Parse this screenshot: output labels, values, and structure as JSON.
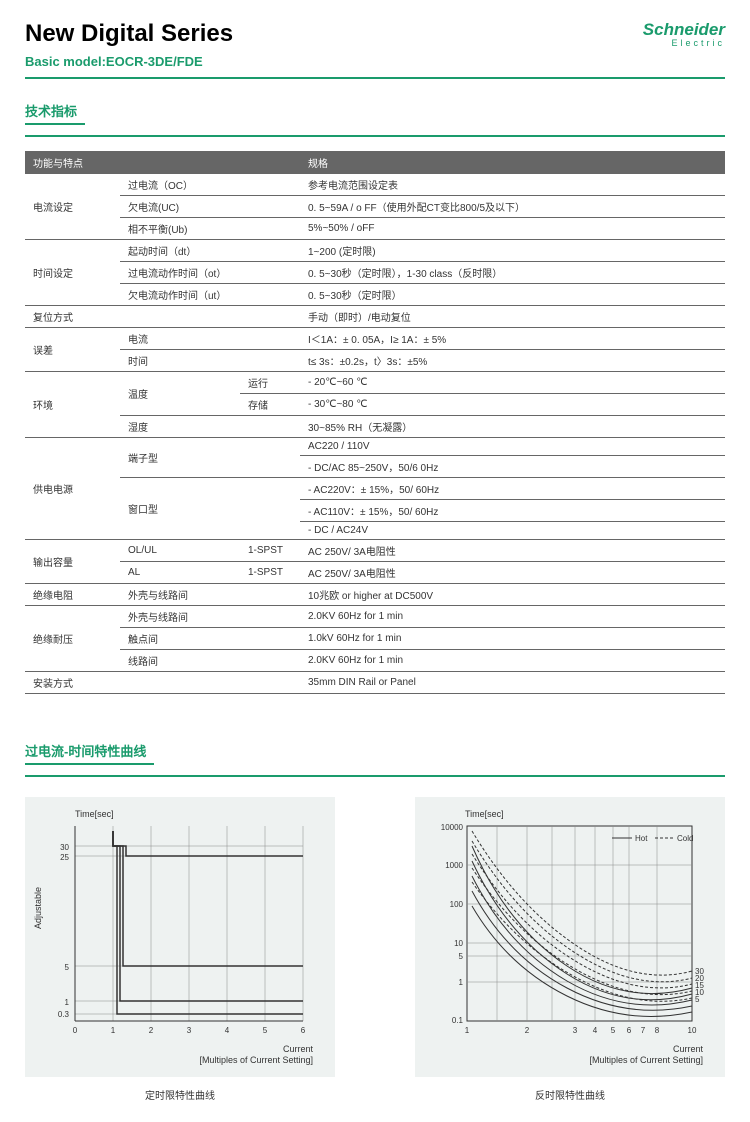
{
  "header": {
    "title": "New Digital Series",
    "subtitle": "Basic model:EOCR-3DE/FDE",
    "logo_name": "Schneider",
    "logo_sub": "Electric"
  },
  "section1_title": "技术指标",
  "section2_title": "过电流-时间特性曲线",
  "table": {
    "header_col1": "功能与特点",
    "header_col2": "规格",
    "rows": [
      {
        "g": "电流设定",
        "c2": "过电流（OC）",
        "c3": "",
        "v": "参考电流范围设定表",
        "span": 3
      },
      {
        "g": "",
        "c2": "欠电流(UC)",
        "c3": "",
        "v": "0. 5~59A / o FF（使用外配CT变比800/5及以下）"
      },
      {
        "g": "",
        "c2": "相不平衡(Ub)",
        "c3": "",
        "v": "5%~50% / oFF"
      },
      {
        "g": "时间设定",
        "c2": "起动时间（dt）",
        "c3": "",
        "v": "1~200 (定时限)",
        "span": 3
      },
      {
        "g": "",
        "c2": "过电流动作时间（ot）",
        "c3": "",
        "v": "0. 5~30秒（定时限），1-30 class（反时限）"
      },
      {
        "g": "",
        "c2": "欠电流动作时间（ut）",
        "c3": "",
        "v": "0. 5~30秒（定时限）"
      },
      {
        "g": "复位方式",
        "c2": "",
        "c3": "",
        "v": "手动（即时）/电动复位",
        "span": 1,
        "merge23": true
      },
      {
        "g": "误差",
        "c2": "电流",
        "c3": "",
        "v": "I＜1A：± 0. 05A，I≥ 1A：± 5%",
        "span": 2
      },
      {
        "g": "",
        "c2": "时间",
        "c3": "",
        "v": "t≤ 3s：±0.2s，t〉3s：±5%"
      },
      {
        "g": "环境",
        "c2": "温度",
        "c3": "运行",
        "v": "- 20℃~60 ℃",
        "span": 3,
        "c2span": 2
      },
      {
        "g": "",
        "c2": "",
        "c3": "存储",
        "v": "- 30℃~80 ℃"
      },
      {
        "g": "",
        "c2": "湿度",
        "c3": "",
        "v": "30~85% RH（无凝露）"
      },
      {
        "g": "供电电源",
        "c2": "端子型",
        "c3": "",
        "v": "AC220 / 110V",
        "span": 5,
        "c2span": 2
      },
      {
        "g": "",
        "c2": "",
        "c3": "",
        "v": "- DC/AC 85~250V，50/6 0Hz"
      },
      {
        "g": "",
        "c2": "窗口型",
        "c3": "",
        "v": "- AC220V：± 15%，50/ 60Hz",
        "c2span": 3
      },
      {
        "g": "",
        "c2": "",
        "c3": "",
        "v": "- AC110V：± 15%，50/ 60Hz"
      },
      {
        "g": "",
        "c2": "",
        "c3": "",
        "v": "- DC / AC24V"
      },
      {
        "g": "输出容量",
        "c2": "OL/UL",
        "c3": "1-SPST",
        "v": "AC 250V/ 3A电阻性",
        "span": 2
      },
      {
        "g": "",
        "c2": "AL",
        "c3": "1-SPST",
        "v": "AC 250V/ 3A电阻性"
      },
      {
        "g": "绝缘电阻",
        "c2": "外壳与线路间",
        "c3": "",
        "v": "10兆欧 or higher at DC500V",
        "span": 1
      },
      {
        "g": "绝缘耐压",
        "c2": "外壳与线路间",
        "c3": "",
        "v": "2.0KV 60Hz for 1 min",
        "span": 3
      },
      {
        "g": "",
        "c2": "触点间",
        "c3": "",
        "v": "1.0kV 60Hz for 1 min"
      },
      {
        "g": "",
        "c2": "线路间",
        "c3": "",
        "v": "2.0KV 60Hz for 1 min"
      },
      {
        "g": "安装方式",
        "c2": "",
        "c3": "",
        "v": "35mm DIN Rail or Panel",
        "span": 1,
        "merge23": true
      }
    ]
  },
  "chart1": {
    "caption": "定时限特性曲线",
    "ylabel": "Time[sec]",
    "xlabel1": "Current",
    "xlabel2": "[Multiples of Current Setting]",
    "adjustable": "Adjustable",
    "xticks": [
      "0",
      "1",
      "2",
      "3",
      "4",
      "5",
      "6"
    ],
    "yticks": [
      {
        "v": "30",
        "y": 20
      },
      {
        "v": "25",
        "y": 30
      },
      {
        "v": "5",
        "y": 140
      },
      {
        "v": "1",
        "y": 175
      },
      {
        "v": "0.3",
        "y": 188
      }
    ],
    "bg": "#eef2f1",
    "grid_color": "#888",
    "curve_color": "#333",
    "xlim": [
      0,
      6
    ],
    "curves": [
      [
        [
          1,
          20
        ],
        [
          1.1,
          20
        ],
        [
          1.1,
          188
        ],
        [
          6,
          188
        ]
      ],
      [
        [
          1,
          20
        ],
        [
          1.15,
          20
        ],
        [
          1.15,
          175
        ],
        [
          6,
          175
        ]
      ],
      [
        [
          1,
          20
        ],
        [
          1.2,
          20
        ],
        [
          1.2,
          140
        ],
        [
          6,
          140
        ]
      ],
      [
        [
          1,
          20
        ],
        [
          1.25,
          20
        ],
        [
          1.25,
          30
        ],
        [
          6,
          30
        ]
      ]
    ]
  },
  "chart2": {
    "caption": "反时限特性曲线",
    "ylabel": "Time[sec]",
    "xlabel1": "Current",
    "xlabel2": "[Multiples of Current Setting]",
    "legend": [
      "Hot",
      "Cold"
    ],
    "xticks": [
      "1",
      "2",
      "3",
      "4",
      "5",
      "6",
      "7",
      "8",
      "10"
    ],
    "yticks": [
      "10000",
      "1000",
      "100",
      "10",
      "5",
      "1",
      "0.1"
    ],
    "right_labels": [
      "30",
      "20",
      "15",
      "10",
      "5"
    ],
    "bg": "#eef2f1",
    "grid_color": "#888",
    "curve_color": "#333",
    "xlim": [
      1,
      10
    ],
    "ylim": [
      0.1,
      10000
    ]
  }
}
